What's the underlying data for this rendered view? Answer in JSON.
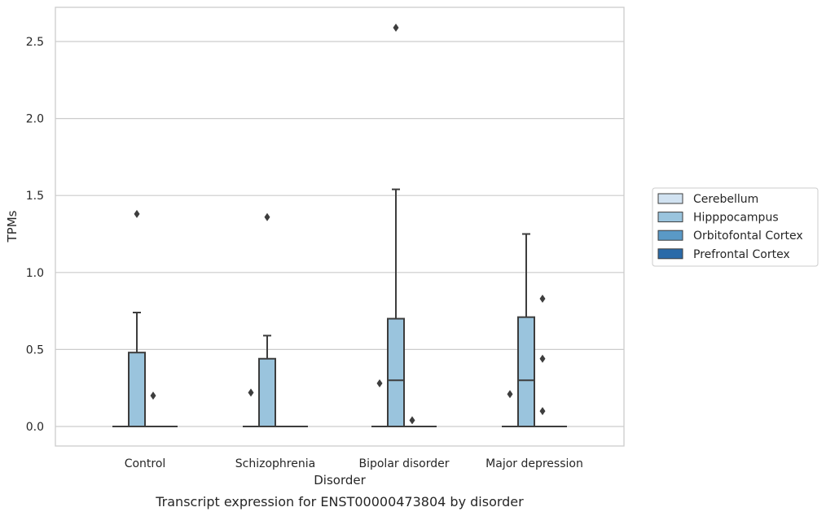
{
  "chart_data": {
    "type": "box",
    "xlabel": "Disorder",
    "ylabel": "TPMs",
    "caption": "Transcript expression for ENST00000473804 by disorder",
    "categories": [
      "Control",
      "Schizophrenia",
      "Bipolar disorder",
      "Major depression"
    ],
    "ylim": [
      -0.13,
      2.72
    ],
    "yticks": [
      0.0,
      0.5,
      1.0,
      1.5,
      2.0,
      2.5
    ],
    "ytick_labels": [
      "0.0",
      "0.5",
      "1.0",
      "1.5",
      "2.0",
      "2.5"
    ],
    "grid": true,
    "legend_position": "right",
    "series": [
      {
        "name": "Cerebellum",
        "color": "#d1e2f1",
        "boxes": [
          {
            "q1": 0,
            "median": 0,
            "q3": 0,
            "whislo": 0,
            "whishi": 0,
            "fliers": []
          },
          {
            "q1": 0,
            "median": 0,
            "q3": 0,
            "whislo": 0,
            "whishi": 0,
            "fliers": []
          },
          {
            "q1": 0,
            "median": 0,
            "q3": 0,
            "whislo": 0,
            "whishi": 0,
            "fliers": []
          },
          {
            "q1": 0,
            "median": 0,
            "q3": 0,
            "whislo": 0,
            "whishi": 0,
            "fliers": []
          }
        ]
      },
      {
        "name": "Hipppocampus",
        "color": "#9ac4dd",
        "boxes": [
          {
            "q1": 0,
            "median": 0,
            "q3": 0.48,
            "whislo": 0,
            "whishi": 0.74,
            "fliers": [
              1.38
            ]
          },
          {
            "q1": 0,
            "median": 0,
            "q3": 0.44,
            "whislo": 0,
            "whishi": 0.59,
            "fliers": [
              1.36
            ]
          },
          {
            "q1": 0,
            "median": 0.3,
            "q3": 0.7,
            "whislo": 0,
            "whishi": 1.54,
            "fliers": [
              2.59
            ]
          },
          {
            "q1": 0,
            "median": 0.3,
            "q3": 0.71,
            "whislo": 0,
            "whishi": 1.25,
            "fliers": []
          }
        ]
      },
      {
        "name": "Orbitofontal Cortex",
        "color": "#5a99c6",
        "boxes": [
          {
            "q1": 0,
            "median": 0,
            "q3": 0,
            "whislo": 0,
            "whishi": 0,
            "fliers": [
              0.2
            ]
          },
          {
            "q1": 0,
            "median": 0,
            "q3": 0,
            "whislo": 0,
            "whishi": 0,
            "fliers": []
          },
          {
            "q1": 0,
            "median": 0,
            "q3": 0,
            "whislo": 0,
            "whishi": 0,
            "fliers": [
              0.04
            ]
          },
          {
            "q1": 0,
            "median": 0,
            "q3": 0,
            "whislo": 0,
            "whishi": 0,
            "fliers": [
              0.83,
              0.44,
              0.1
            ]
          }
        ]
      },
      {
        "name": "Prefrontal Cortex",
        "color": "#2a6aa8",
        "boxes": [
          {
            "q1": 0,
            "median": 0,
            "q3": 0,
            "whislo": 0,
            "whishi": 0,
            "fliers": []
          },
          {
            "q1": 0,
            "median": 0,
            "q3": 0,
            "whislo": 0,
            "whishi": 0,
            "fliers": []
          },
          {
            "q1": 0,
            "median": 0,
            "q3": 0,
            "whislo": 0,
            "whishi": 0,
            "fliers": []
          },
          {
            "q1": 0,
            "median": 0,
            "q3": 0,
            "whislo": 0,
            "whishi": 0,
            "fliers": []
          }
        ]
      }
    ],
    "extra_fliers": [
      {
        "category": "Schizophrenia",
        "series": "Cerebellum",
        "value": 0.22
      },
      {
        "category": "Bipolar disorder",
        "series": "Cerebellum",
        "value": 0.28
      },
      {
        "category": "Major depression",
        "series": "Cerebellum",
        "value": 0.21
      }
    ]
  }
}
